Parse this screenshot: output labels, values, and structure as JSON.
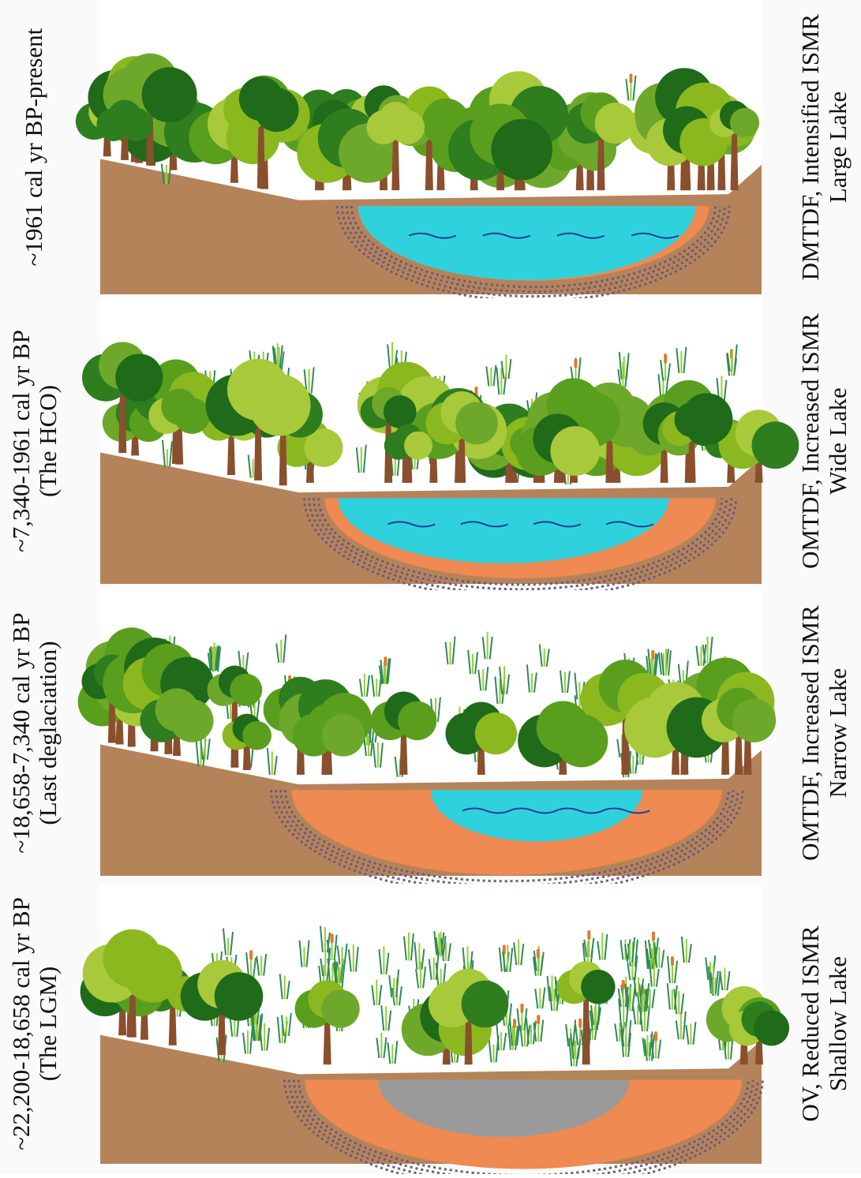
{
  "panels": [
    {
      "period": [
        "~1961 cal yr BP-present"
      ],
      "description": [
        "DMTDF, Intensified ISMR",
        "Large Lake"
      ]
    },
    {
      "period": [
        "~7,340-1961 cal yr BP",
        "(The HCO)"
      ],
      "description": [
        "OMTDF, Increased ISMR",
        "Wide Lake"
      ]
    },
    {
      "period": [
        "~18,658-7,340 cal yr BP",
        "(Last deglaciation)"
      ],
      "description": [
        "OMTDF, Increased ISMR",
        "Narrow Lake"
      ]
    },
    {
      "period": [
        "~22,200-18,658 cal yr BP",
        "(The LGM)"
      ],
      "description": [
        "OV, Reduced ISMR",
        "Shallow Lake"
      ]
    }
  ]
}
